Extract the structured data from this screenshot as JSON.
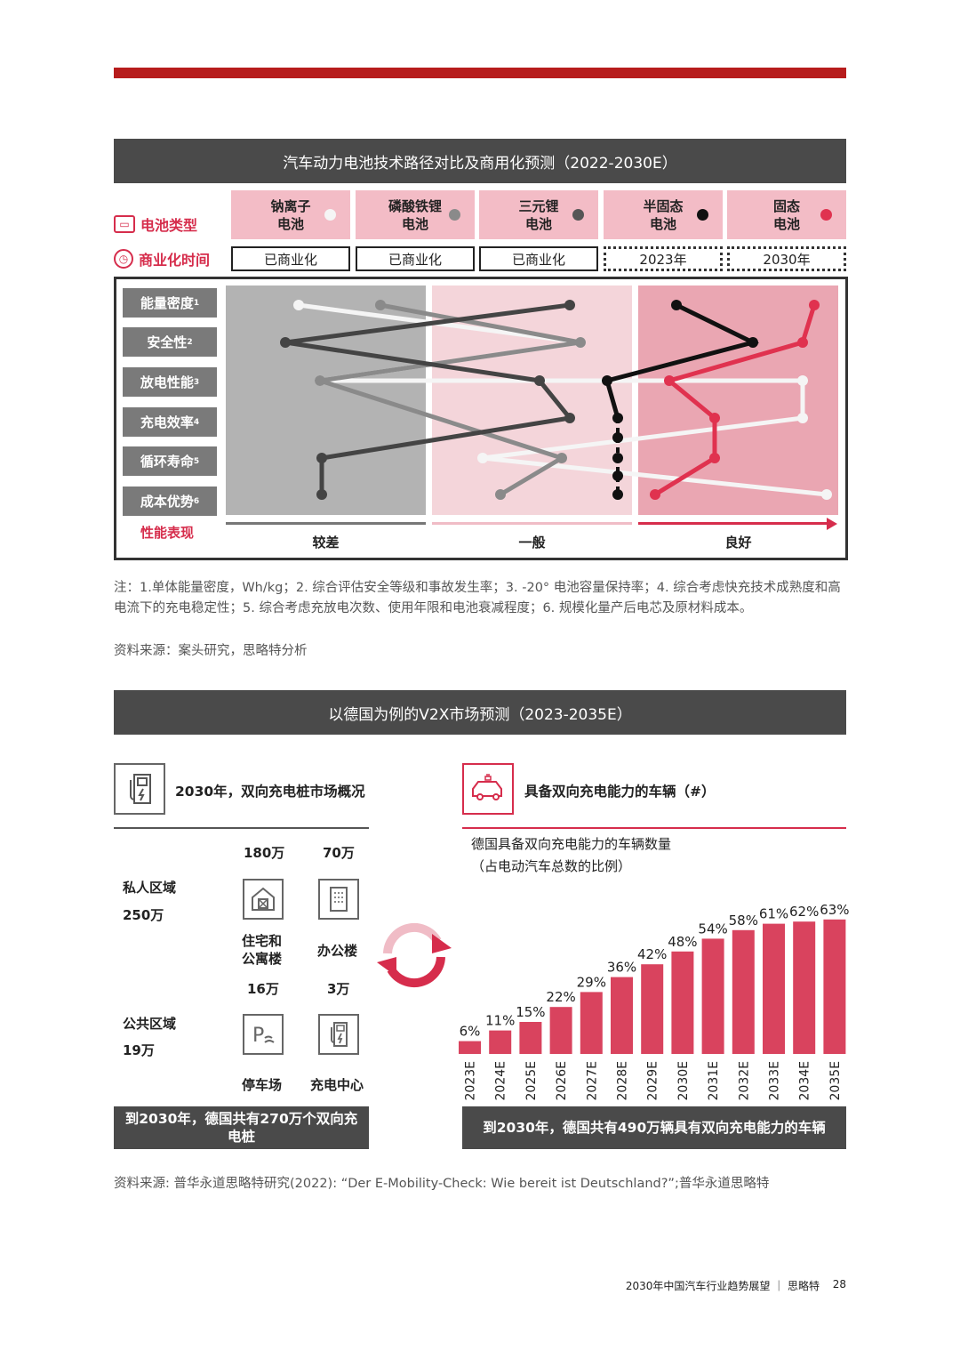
{
  "section1": {
    "title": "汽车动力电池技术路径对比及商用化预测（2022-2030E）",
    "row_battery_type": "电池类型",
    "row_commercial_time": "商业化时间",
    "row_performance": "性能表现",
    "batteries": [
      {
        "name_line1": "钠离子",
        "name_line2": "电池",
        "commercial": "已商业化",
        "color": "#f5f5f5"
      },
      {
        "name_line1": "磷酸铁锂",
        "name_line2": "电池",
        "commercial": "已商业化",
        "color": "#8a8a8a"
      },
      {
        "name_line1": "三元锂",
        "name_line2": "电池",
        "commercial": "已商业化",
        "color": "#555555"
      },
      {
        "name_line1": "半固态",
        "name_line2": "电池",
        "commercial": "2023年",
        "color": "#111111"
      },
      {
        "name_line1": "固态",
        "name_line2": "电池",
        "commercial": "2030年",
        "color": "#e0324f"
      }
    ],
    "metrics": [
      {
        "label": "能量密度",
        "sup": "1"
      },
      {
        "label": "安全性",
        "sup": "2"
      },
      {
        "label": "放电性能",
        "sup": "3"
      },
      {
        "label": "充电效率",
        "sup": "4"
      },
      {
        "label": "循环寿命",
        "sup": "5"
      },
      {
        "label": "成本优势",
        "sup": "6"
      }
    ],
    "zones": [
      "较差",
      "一般",
      "良好"
    ],
    "note": "注：1.单体能量密度，Wh/kg；2. 综合评估安全等级和事故发生率；3. -20° 电池容量保持率；4. 综合考虑快充技术成熟度和高电流下的充电稳定性；5. 综合考虑充放电次数、使用年限和电池衰减程度；6. 规模化量产后电芯及原材料成本。",
    "source": "资料来源：案头研究，思略特分析"
  },
  "section2": {
    "title": "以德国为例的V2X市场预测（2023-2035E）",
    "left": {
      "heading": "2030年，双向充电桩市场概况",
      "col1_top": "180万",
      "col2_top": "70万",
      "private_label": "私人区域",
      "private_value": "250万",
      "residential": "住宅和公寓楼",
      "residential_l1": "住宅和",
      "residential_l2": "公寓楼",
      "office": "办公楼",
      "col1_mid": "16万",
      "col2_mid": "3万",
      "public_label": "公共区域",
      "public_value": "19万",
      "parking": "停车场",
      "charging": "充电中心",
      "summary": "到2030年，德国共有270万个双向充电桩",
      "summary_l1": "到2030年，德国共有270万个双向充",
      "summary_l2": "电桩"
    },
    "right": {
      "heading": "具备双向充电能力的车辆（#）",
      "sub1": "德国具备双向充电能力的车辆数量",
      "sub2": "（占电动汽车总数的比例）",
      "summary": "到2030年，德国共有490万辆具有双向充电能力的车辆"
    },
    "source": "资料来源: 普华永道思略特研究(2022): “Der E-Mobility-Check: Wie bereit ist Deutschland?”;普华永道思略特"
  },
  "footer": {
    "text": "2030年中国汽车行业趋势展望 ｜ 思略特",
    "page": "28"
  },
  "chart_data": {
    "type": "bar",
    "title": "德国具备双向充电能力的车辆数量",
    "categories": [
      "2023E",
      "2024E",
      "2025E",
      "2026E",
      "2027E",
      "2028E",
      "2029E",
      "2030E",
      "2031E",
      "2032E",
      "2033E",
      "2034E",
      "2035E"
    ],
    "values": [
      6,
      11,
      15,
      22,
      29,
      36,
      42,
      48,
      54,
      58,
      61,
      62,
      63
    ],
    "labels": [
      "6%",
      "11%",
      "15%",
      "22%",
      "29%",
      "36%",
      "42%",
      "48%",
      "54%",
      "58%",
      "61%",
      "62%",
      "63%"
    ],
    "ylim": [
      0,
      70
    ],
    "color": "#d9435e"
  }
}
